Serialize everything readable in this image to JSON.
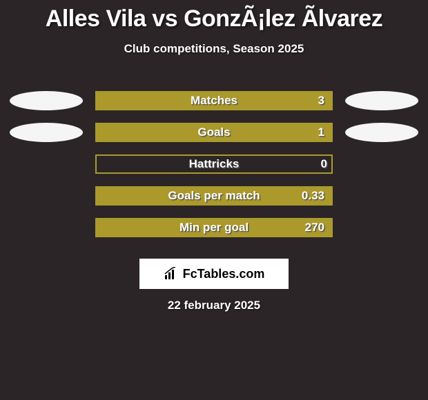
{
  "title": "Alles Vila vs GonzÃ¡lez Ãlvarez",
  "title_fontsize": 34,
  "subtitle": "Club competitions, Season 2025",
  "subtitle_fontsize": 17,
  "colors": {
    "background": "#2b2528",
    "bar_border": "#ab9a2b",
    "bar_fill": "#ab9a2b",
    "oval_left": "#f5f5f5",
    "oval_right": "#f5f5f5",
    "text": "#ffffff"
  },
  "bars": [
    {
      "label": "Matches",
      "value": "3",
      "fill_pct": 100,
      "show_left_oval": true,
      "show_right_oval": true
    },
    {
      "label": "Goals",
      "value": "1",
      "fill_pct": 100,
      "show_left_oval": true,
      "show_right_oval": true
    },
    {
      "label": "Hattricks",
      "value": "0",
      "fill_pct": 0,
      "show_left_oval": false,
      "show_right_oval": false
    },
    {
      "label": "Goals per match",
      "value": "0.33",
      "fill_pct": 100,
      "show_left_oval": false,
      "show_right_oval": false
    },
    {
      "label": "Min per goal",
      "value": "270",
      "fill_pct": 100,
      "show_left_oval": false,
      "show_right_oval": false
    }
  ],
  "bar_label_fontsize": 17,
  "logo_text": "FcTables.com",
  "logo_fontsize": 18,
  "date": "22 february 2025",
  "date_fontsize": 17
}
